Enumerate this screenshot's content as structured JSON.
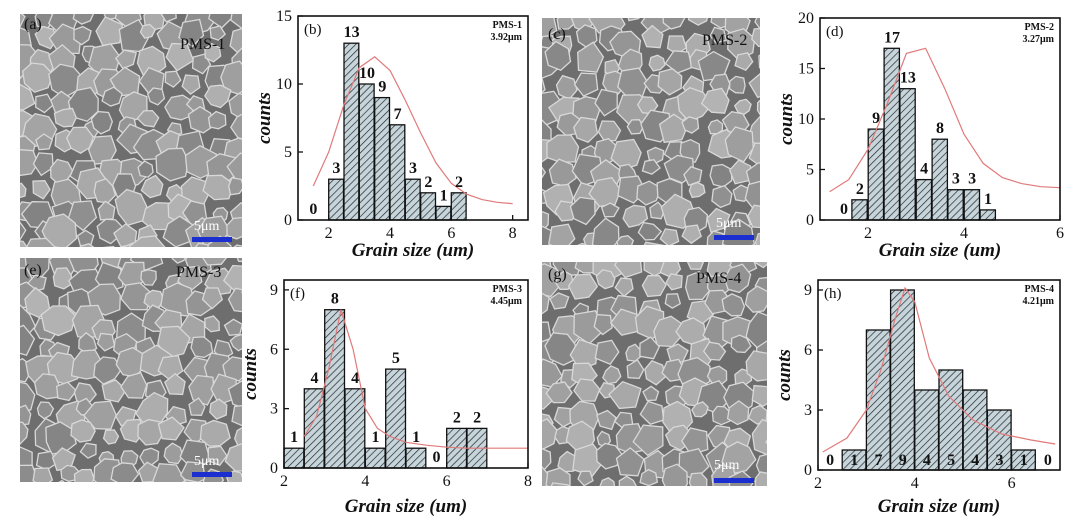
{
  "panels": [
    {
      "letter": "(a)",
      "sample": "PMS-1",
      "scale": "5μm"
    },
    {
      "letter": "(c)",
      "sample": "PMS-2",
      "scale": "5μm"
    },
    {
      "letter": "(e)",
      "sample": "PMS-3",
      "scale": "5μm"
    },
    {
      "letter": "(g)",
      "sample": "PMS-4",
      "scale": "5μm"
    }
  ],
  "colors": {
    "bar_fill": "#c7d4da",
    "bar_stroke": "#111111",
    "fit": "#e07a7a",
    "scale_bar": "#1b2fd0"
  },
  "chart_data": [
    {
      "type": "bar",
      "panel": "(b)",
      "legend_sample": "PMS-1",
      "legend_size": "3.92μm",
      "xlabel": "Grain size (um)",
      "ylabel": "counts",
      "xlim": [
        1,
        8.5
      ],
      "ylim": [
        0,
        15
      ],
      "xticks": [
        2,
        4,
        6,
        8
      ],
      "yticks": [
        0,
        5,
        10,
        15
      ],
      "bar_width": 0.5,
      "x": [
        1.5,
        2,
        2.5,
        3,
        3.5,
        4,
        4.5,
        5,
        5.5,
        6,
        6.5,
        7,
        7.5,
        8
      ],
      "values": [
        0,
        3,
        13,
        10,
        9,
        7,
        3,
        2,
        1,
        2,
        0,
        0,
        0,
        0
      ],
      "labels": [
        {
          "x": 1.5,
          "y": 0,
          "text": "0"
        },
        {
          "x": 2.25,
          "y": 3,
          "text": "3"
        },
        {
          "x": 2.75,
          "y": 13,
          "text": "13"
        },
        {
          "x": 3.25,
          "y": 10,
          "text": "10"
        },
        {
          "x": 3.75,
          "y": 9,
          "text": "9"
        },
        {
          "x": 4.25,
          "y": 7,
          "text": "7"
        },
        {
          "x": 4.75,
          "y": 3,
          "text": "3"
        },
        {
          "x": 5.25,
          "y": 2,
          "text": "2"
        },
        {
          "x": 5.75,
          "y": 1,
          "text": "1"
        },
        {
          "x": 6.25,
          "y": 2,
          "text": "2"
        }
      ],
      "bars": [
        {
          "x": 2.25,
          "value": 3
        },
        {
          "x": 2.75,
          "value": 13
        },
        {
          "x": 3.25,
          "value": 10
        },
        {
          "x": 3.75,
          "value": 9
        },
        {
          "x": 4.25,
          "value": 7
        },
        {
          "x": 4.75,
          "value": 3
        },
        {
          "x": 5.25,
          "value": 2
        },
        {
          "x": 5.75,
          "value": 1
        },
        {
          "x": 6.25,
          "value": 2
        }
      ],
      "fit": {
        "x": [
          1.5,
          2,
          2.5,
          3,
          3.5,
          4,
          4.5,
          5,
          5.5,
          6,
          6.5,
          7,
          7.5,
          8
        ],
        "y": [
          2.5,
          5,
          8.5,
          11.2,
          12,
          11,
          8.8,
          6.4,
          4.2,
          2.7,
          1.9,
          1.5,
          1.3,
          1.2
        ]
      }
    },
    {
      "type": "bar",
      "panel": "(d)",
      "legend_sample": "PMS-2",
      "legend_size": "3.27μm",
      "xlabel": "Grain size (um)",
      "ylabel": "counts",
      "xlim": [
        1,
        6
      ],
      "ylim": [
        0,
        20
      ],
      "xticks": [
        2,
        4,
        6
      ],
      "yticks": [
        0,
        5,
        10,
        15,
        20
      ],
      "bars": [
        {
          "x": 1.5,
          "value": 0
        },
        {
          "x": 1.83,
          "value": 2
        },
        {
          "x": 2.17,
          "value": 9
        },
        {
          "x": 2.5,
          "value": 17
        },
        {
          "x": 2.83,
          "value": 13
        },
        {
          "x": 3.17,
          "value": 4
        },
        {
          "x": 3.5,
          "value": 8
        },
        {
          "x": 3.83,
          "value": 3
        },
        {
          "x": 4.17,
          "value": 3
        },
        {
          "x": 4.5,
          "value": 1
        }
      ],
      "fit": {
        "x": [
          1.2,
          1.6,
          2,
          2.4,
          2.8,
          3.2,
          3.6,
          4,
          4.4,
          4.8,
          5.2,
          5.6,
          6
        ],
        "y": [
          2.8,
          4,
          7,
          11.5,
          16.5,
          17,
          13,
          8.5,
          5.6,
          4.2,
          3.6,
          3.3,
          3.2
        ]
      }
    },
    {
      "type": "bar",
      "panel": "(f)",
      "legend_sample": "PMS-3",
      "legend_size": "4.45μm",
      "xlabel": "Grain size (um)",
      "ylabel": "counts",
      "xlim": [
        2,
        8
      ],
      "ylim": [
        0,
        9.5
      ],
      "xticks": [
        2,
        4,
        6,
        8
      ],
      "yticks": [
        0,
        3,
        6,
        9
      ],
      "bars": [
        {
          "x": 2.25,
          "value": 1
        },
        {
          "x": 2.75,
          "value": 4
        },
        {
          "x": 3.25,
          "value": 8
        },
        {
          "x": 3.75,
          "value": 4
        },
        {
          "x": 4.25,
          "value": 1
        },
        {
          "x": 4.75,
          "value": 5
        },
        {
          "x": 5.25,
          "value": 1
        },
        {
          "x": 5.75,
          "value": 0
        },
        {
          "x": 6.25,
          "value": 2
        },
        {
          "x": 6.75,
          "value": 2
        }
      ],
      "fit": {
        "x": [
          2.5,
          2.8,
          3.1,
          3.4,
          3.7,
          4,
          4.3,
          4.6,
          5,
          5.5,
          6,
          6.5,
          7,
          7.5,
          8
        ],
        "y": [
          1.6,
          2.6,
          5,
          8,
          6,
          3,
          2,
          1.6,
          1.3,
          1.15,
          1.05,
          1,
          1,
          1,
          1
        ]
      }
    },
    {
      "type": "bar",
      "panel": "(h)",
      "legend_sample": "PMS-4",
      "legend_size": "4.21μm",
      "xlabel": "Grain size (um)",
      "ylabel": "counts",
      "xlim": [
        2,
        7
      ],
      "ylim": [
        0,
        9.5
      ],
      "xticks": [
        2,
        4,
        6
      ],
      "yticks": [
        0,
        3,
        6,
        9
      ],
      "bars": [
        {
          "x": 2.25,
          "value": 0
        },
        {
          "x": 2.75,
          "value": 1
        },
        {
          "x": 3.25,
          "value": 7
        },
        {
          "x": 3.75,
          "value": 9
        },
        {
          "x": 4.25,
          "value": 4
        },
        {
          "x": 4.75,
          "value": 5
        },
        {
          "x": 5.25,
          "value": 4
        },
        {
          "x": 5.75,
          "value": 3
        },
        {
          "x": 6.25,
          "value": 1
        },
        {
          "x": 6.75,
          "value": 0
        }
      ],
      "fit": {
        "x": [
          2.1,
          2.6,
          3,
          3.3,
          3.6,
          3.8,
          4,
          4.3,
          4.7,
          5.2,
          5.8,
          6.4,
          6.9
        ],
        "y": [
          0.9,
          1.6,
          3,
          5,
          7.6,
          9.1,
          8.4,
          5.6,
          3.7,
          2.5,
          1.8,
          1.5,
          1.3
        ]
      }
    }
  ]
}
